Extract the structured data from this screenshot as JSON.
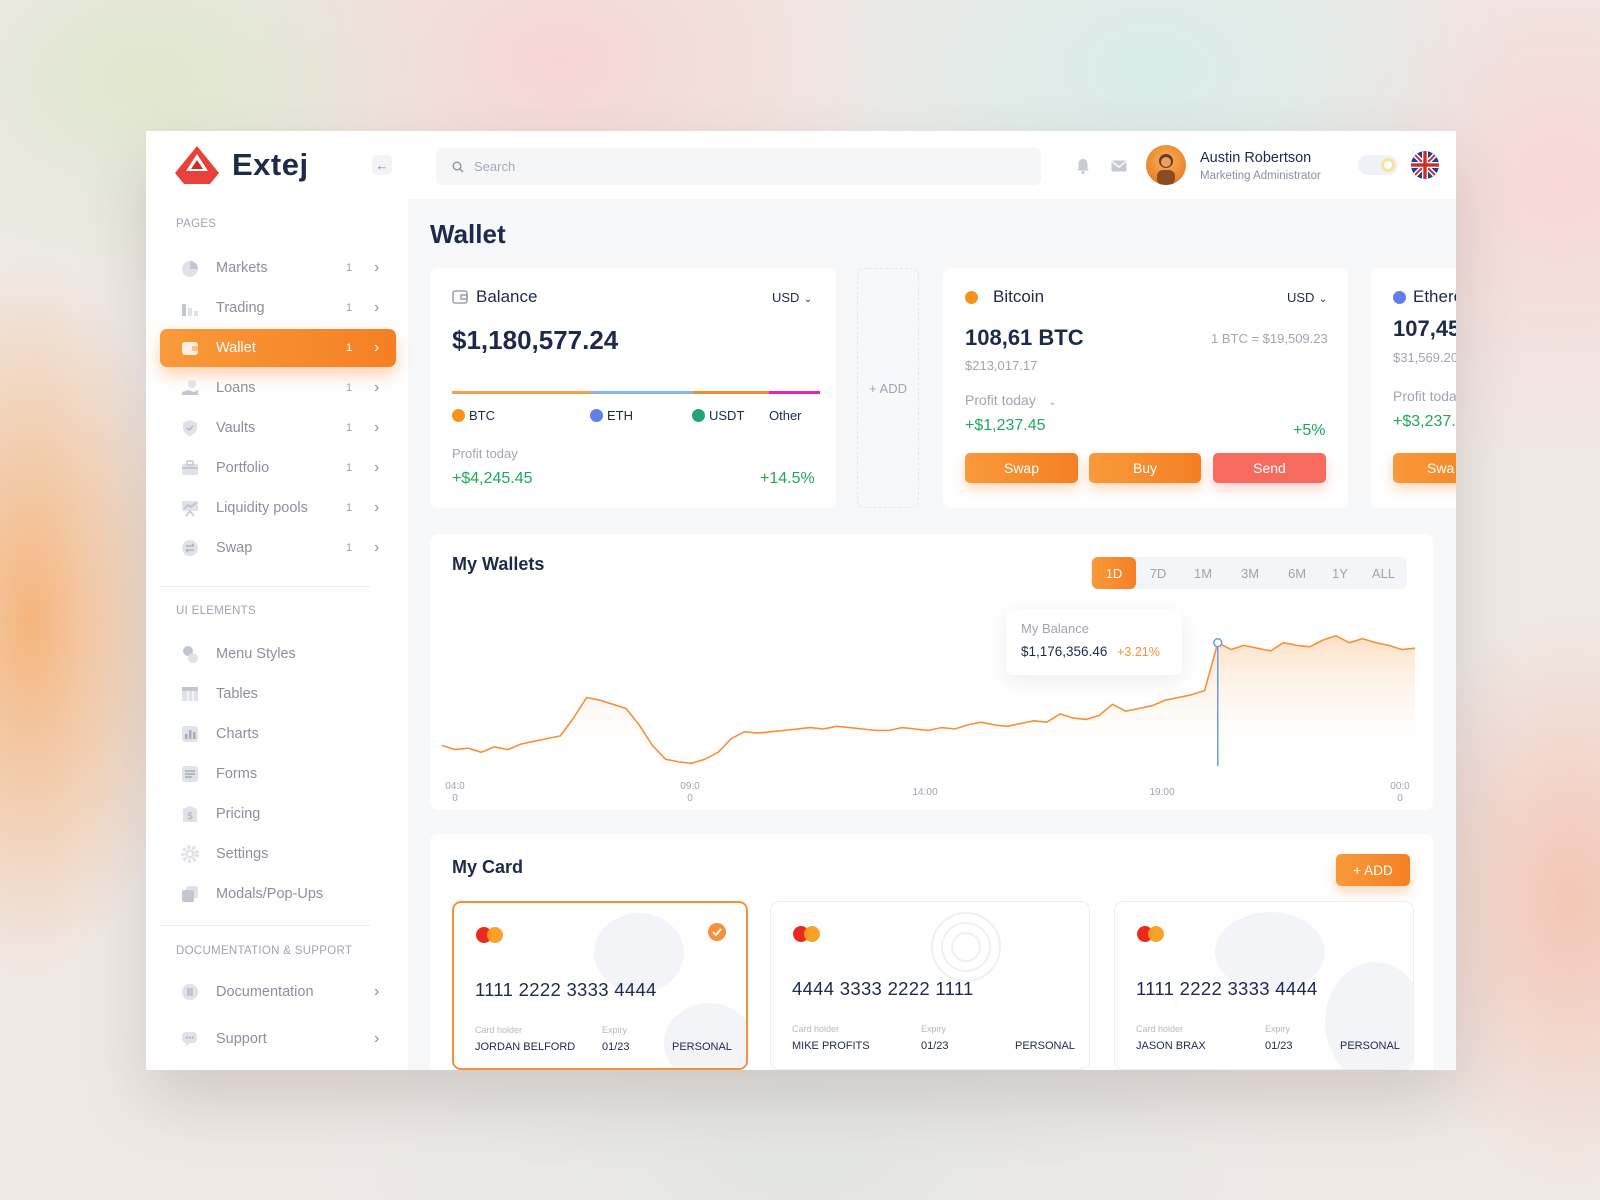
{
  "header": {
    "brand": "Extej",
    "search_placeholder": "Search",
    "user_name": "Austin Robertson",
    "user_role": "Marketing Administrator",
    "icons": [
      "bell-icon",
      "mail-icon"
    ]
  },
  "sidebar": {
    "section_pages": "PAGES",
    "pages": [
      {
        "label": "Markets",
        "count": "1",
        "icon": "pie-chart-icon"
      },
      {
        "label": "Trading",
        "count": "1",
        "icon": "bar-chart-icon"
      },
      {
        "label": "Wallet",
        "count": "1",
        "icon": "wallet-icon",
        "active": true
      },
      {
        "label": "Loans",
        "count": "1",
        "icon": "hand-coin-icon"
      },
      {
        "label": "Vaults",
        "count": "1",
        "icon": "shield-icon"
      },
      {
        "label": "Portfolio",
        "count": "1",
        "icon": "briefcase-icon"
      },
      {
        "label": "Liquidity pools",
        "count": "1",
        "icon": "presentation-icon"
      },
      {
        "label": "Swap",
        "count": "1",
        "icon": "swap-icon"
      }
    ],
    "section_ui": "UI ELEMENTS",
    "ui_elements": [
      {
        "label": "Menu Styles",
        "icon": "shapes-icon"
      },
      {
        "label": "Tables",
        "icon": "table-icon"
      },
      {
        "label": "Charts",
        "icon": "chart-icon"
      },
      {
        "label": "Forms",
        "icon": "form-icon"
      },
      {
        "label": "Pricing",
        "icon": "price-tag-icon"
      },
      {
        "label": "Settings",
        "icon": "gear-icon"
      },
      {
        "label": "Modals/Pop-Ups",
        "icon": "modal-icon"
      }
    ],
    "section_docs": "DOCUMENTATION & SUPPORT",
    "docs": [
      {
        "label": "Documentation",
        "icon": "document-icon"
      },
      {
        "label": "Support",
        "icon": "chat-icon"
      }
    ]
  },
  "page_title": "Wallet",
  "balance": {
    "title": "Balance",
    "currency": "USD",
    "amount": "$1,180,577.24",
    "allocation": [
      {
        "name": "BTC",
        "color": "#f7931a"
      },
      {
        "name": "ETH",
        "color": "#627eea"
      },
      {
        "name": "USDT",
        "color": "#26a17b"
      },
      {
        "name": "Other",
        "color": "#e81ec9"
      }
    ],
    "profit_label": "Profit today",
    "profit_value": "+$4,245.45",
    "profit_pct": "+14.5%"
  },
  "add_label": "+ ADD",
  "bitcoin": {
    "title": "Bitcoin",
    "currency": "USD",
    "amount": "108,61 BTC",
    "usd_value": "$213,017.17",
    "rate": "1 BTC = $19,509.23",
    "profit_label": "Profit today",
    "profit_value": "+$1,237.45",
    "profit_pct": "+5%",
    "buttons": {
      "swap": "Swap",
      "buy": "Buy",
      "send": "Send"
    }
  },
  "ethereum": {
    "title": "Ethere",
    "amount": "107,45",
    "usd_value": "$31,569.20",
    "profit_label": "Profit toda",
    "profit_value": "+$3,237.4",
    "swap": "Swa"
  },
  "wallets": {
    "title": "My Wallets",
    "ranges": [
      "1D",
      "7D",
      "1M",
      "3M",
      "6M",
      "1Y",
      "ALL"
    ],
    "active_range": "1D",
    "tooltip_label": "My Balance",
    "tooltip_value": "$1,176,356.46",
    "tooltip_change": "+3.21%",
    "x_labels": [
      {
        "l1": "04:0",
        "l2": "0"
      },
      {
        "l1": "09:0",
        "l2": "0"
      },
      {
        "l1": "14:00",
        "l2": ""
      },
      {
        "l1": "19:00",
        "l2": ""
      },
      {
        "l1": "00:0",
        "l2": "0"
      }
    ]
  },
  "chart_data": {
    "type": "area",
    "title": "My Wallets",
    "x_ticks": [
      "04:00",
      "09:00",
      "14:00",
      "19:00",
      "00:00"
    ],
    "y_relative_series": [
      0.15,
      0.12,
      0.13,
      0.1,
      0.14,
      0.12,
      0.16,
      0.18,
      0.2,
      0.22,
      0.35,
      0.5,
      0.48,
      0.45,
      0.42,
      0.3,
      0.15,
      0.05,
      0.03,
      0.02,
      0.05,
      0.1,
      0.2,
      0.25,
      0.24,
      0.25,
      0.26,
      0.27,
      0.28,
      0.27,
      0.29,
      0.28,
      0.27,
      0.26,
      0.26,
      0.28,
      0.27,
      0.26,
      0.28,
      0.27,
      0.3,
      0.32,
      0.3,
      0.29,
      0.31,
      0.33,
      0.32,
      0.38,
      0.35,
      0.34,
      0.37,
      0.45,
      0.4,
      0.42,
      0.44,
      0.48,
      0.5,
      0.52,
      0.55,
      0.9,
      0.85,
      0.88,
      0.86,
      0.84,
      0.9,
      0.88,
      0.87,
      0.92,
      0.95,
      0.9,
      0.93,
      0.9,
      0.88,
      0.85,
      0.86
    ],
    "highlight_index": 59,
    "color": "#f5913a"
  },
  "my_card": {
    "title": "My Card",
    "add_label": "+ ADD",
    "holder_label": "Card holder",
    "expiry_label": "Expiry",
    "cards": [
      {
        "number": "1111 2222 3333 4444",
        "holder": "JORDAN BELFORD",
        "expiry": "01/23",
        "type": "PERSONAL",
        "selected": true
      },
      {
        "number": "4444 3333 2222 1111",
        "holder": "MIKE PROFITS",
        "expiry": "01/23",
        "type": "PERSONAL",
        "selected": false
      },
      {
        "number": "1111 2222 3333 4444",
        "holder": "JASON BRAX",
        "expiry": "01/23",
        "type": "PERSONAL",
        "selected": false
      }
    ]
  }
}
